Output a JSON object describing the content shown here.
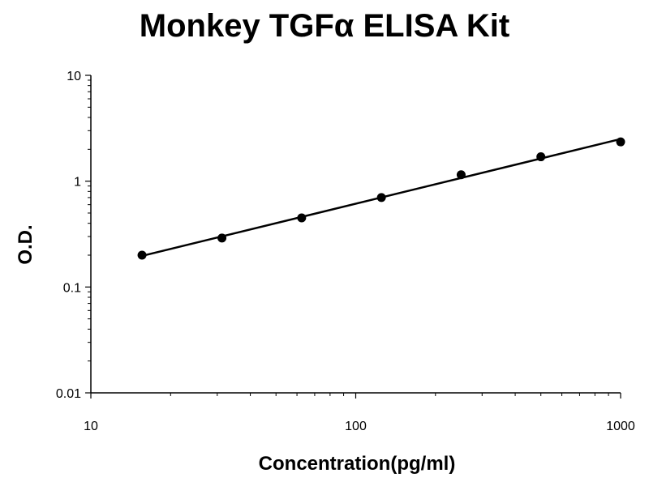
{
  "chart_data": {
    "type": "scatter",
    "title": "Monkey TGFα ELISA Kit",
    "xlabel": "Concentration(pg/ml)",
    "ylabel": "O.D.",
    "x_scale": "log",
    "y_scale": "log",
    "xlim": [
      10,
      1000
    ],
    "ylim": [
      0.01,
      10
    ],
    "x_ticks": [
      10,
      100,
      1000
    ],
    "x_tick_labels": [
      "10",
      "100",
      "1000"
    ],
    "y_ticks": [
      0.01,
      0.1,
      1,
      10
    ],
    "y_tick_labels": [
      "0.01",
      "0.1",
      "1",
      "10"
    ],
    "grid": false,
    "series": [
      {
        "x": [
          15.6,
          31.25,
          62.5,
          125,
          250,
          500,
          1000
        ],
        "y": [
          0.2,
          0.29,
          0.45,
          0.7,
          1.15,
          1.7,
          2.35
        ],
        "trendline": "power",
        "marker": "circle",
        "color": "#000000"
      }
    ]
  }
}
